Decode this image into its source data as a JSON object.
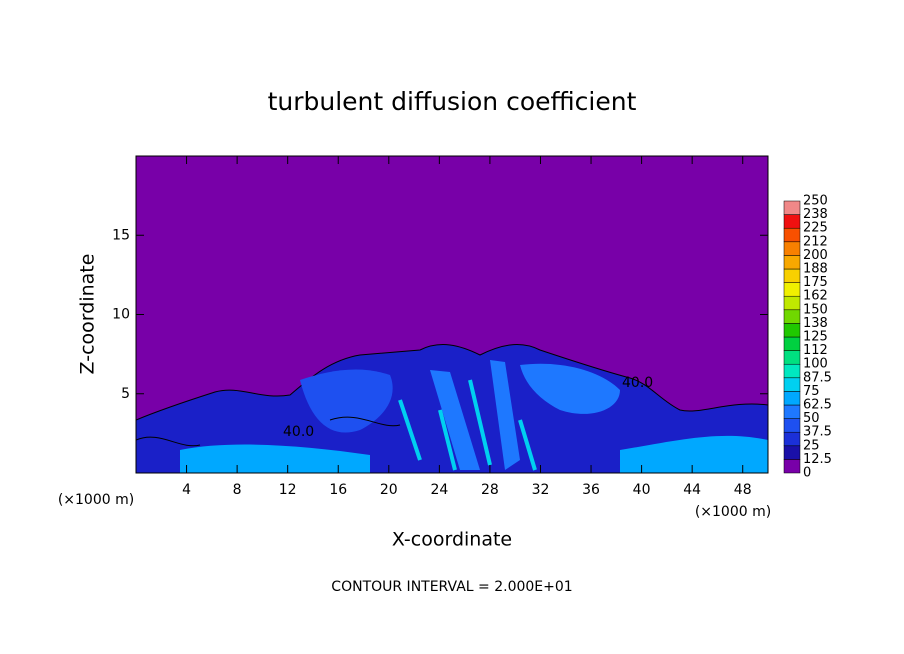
{
  "chart_data": {
    "type": "contour",
    "title": "turbulent diffusion coefficient",
    "x_label": "X-coordinate",
    "y_label": "Z-coordinate",
    "x_unit": "(×1000 m)",
    "y_unit": "(×1000 m)",
    "footer": "CONTOUR INTERVAL = 2.000E+01",
    "xlim": [
      0,
      50
    ],
    "ylim": [
      0,
      20
    ],
    "xticks": [
      4,
      8,
      12,
      16,
      20,
      24,
      28,
      32,
      36,
      40,
      44,
      48
    ],
    "yticks": [
      5,
      10,
      15
    ],
    "contour_labels": [
      "40.0",
      "40.0"
    ],
    "colorbar_levels": [
      0,
      12.5,
      25,
      37.5,
      50,
      62.5,
      75,
      87.5,
      100,
      112,
      125,
      138,
      150,
      162,
      175,
      188,
      200,
      212,
      225,
      238,
      250
    ],
    "colorbar_colors": [
      "#7800a8",
      "#1a10a8",
      "#1b30d8",
      "#1e50f0",
      "#1e78ff",
      "#00a8ff",
      "#00d0f0",
      "#00e8c0",
      "#00e080",
      "#00d040",
      "#20c800",
      "#70d800",
      "#c0e800",
      "#f0f000",
      "#f8d000",
      "#f8a800",
      "#f88000",
      "#f85000",
      "#f01010",
      "#f08888"
    ]
  }
}
